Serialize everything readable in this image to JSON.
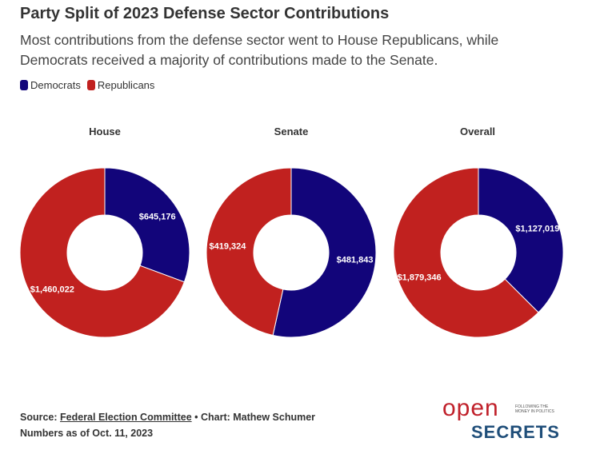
{
  "header": {
    "title": "Party Split of 2023 Defense Sector Contributions",
    "subtitle_line1": "Most contributions from the defense sector went to House Republicans, while",
    "subtitle_line2": "Democrats received a majority of contributions made to the Senate."
  },
  "legend": {
    "items": [
      {
        "label": "Democrats",
        "color": "#12057a"
      },
      {
        "label": "Republicans",
        "color": "#c1211f"
      }
    ]
  },
  "chart_data": [
    {
      "type": "pie",
      "title": "House",
      "categories": [
        "Democrats",
        "Republicans"
      ],
      "values": [
        645176,
        1460022
      ],
      "labels": [
        "$645,176",
        "$1,460,022"
      ],
      "colors": [
        "#12057a",
        "#c1211f"
      ]
    },
    {
      "type": "pie",
      "title": "Senate",
      "categories": [
        "Democrats",
        "Republicans"
      ],
      "values": [
        481843,
        419324
      ],
      "labels": [
        "$481,843",
        "$419,324"
      ],
      "colors": [
        "#12057a",
        "#c1211f"
      ]
    },
    {
      "type": "pie",
      "title": "Overall",
      "categories": [
        "Democrats",
        "Republicans"
      ],
      "values": [
        1127019,
        1879346
      ],
      "labels": [
        "$1,127,019",
        "$1,879,346"
      ],
      "colors": [
        "#12057a",
        "#c1211f"
      ]
    }
  ],
  "footer": {
    "source_prefix": "Source: ",
    "source_link": "Federal Election Committee",
    "credit": " • Chart: Mathew Schumer",
    "note": "Numbers as of Oct. 11, 2023"
  },
  "logo": {
    "open": "open",
    "tagline": "Following the money in politics",
    "secrets": "SECRETS"
  }
}
